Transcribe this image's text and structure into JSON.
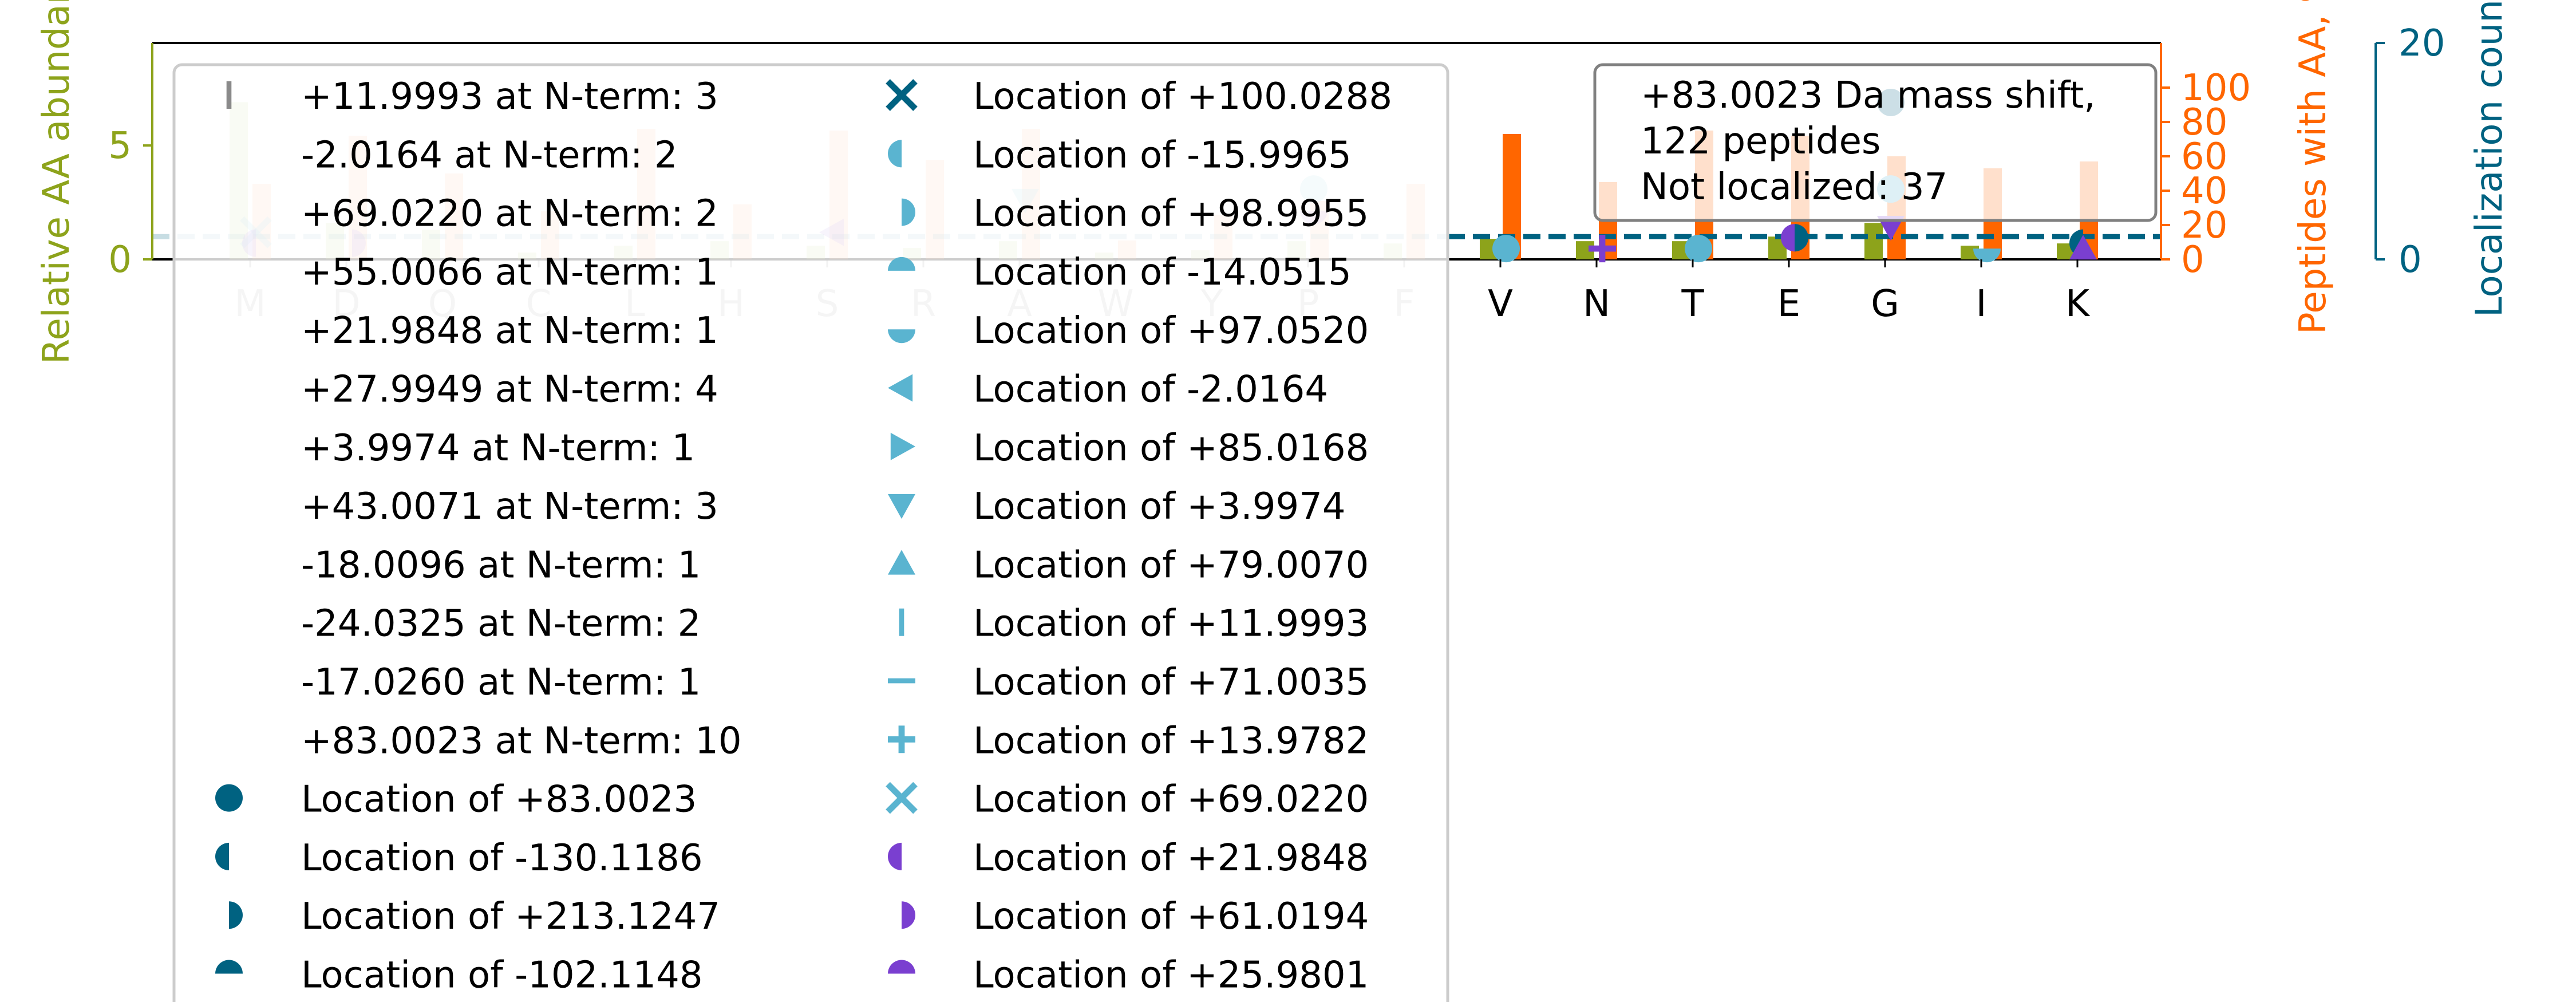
{
  "chart_data": {
    "type": "bar",
    "categories": [
      "M",
      "D",
      "Q",
      "C",
      "L",
      "H",
      "S",
      "R",
      "A",
      "W",
      "Y",
      "P",
      "F",
      "V",
      "N",
      "T",
      "E",
      "G",
      "I",
      "K"
    ],
    "y_left": {
      "label": "Relative AA abundance",
      "ticks": [
        "0",
        "5"
      ],
      "lim": [
        0,
        9.5
      ],
      "color": "#8da31b"
    },
    "y_right1": {
      "label": "Peptides with AA, %",
      "ticks": [
        "0",
        "20",
        "40",
        "60",
        "80",
        "100"
      ],
      "lim": [
        0,
        126
      ],
      "color": "#ff6600"
    },
    "y_right2": {
      "label": "Localization count",
      "ticks": [
        "0",
        "20"
      ],
      "lim": [
        0,
        20
      ],
      "color": "#006281"
    },
    "series": [
      {
        "name": "Relative AA abundance",
        "axis": "left",
        "color": "#8da31b",
        "values": [
          6.9,
          1.6,
          1.3,
          0.3,
          0.6,
          0.8,
          0.6,
          0.5,
          0.8,
          0.3,
          0.4,
          0.8,
          0.7,
          0.9,
          0.8,
          0.8,
          1.0,
          1.6,
          0.6,
          0.7
        ]
      },
      {
        "name": "Peptides with AA, %",
        "axis": "right1",
        "color": "#ff6600",
        "values": [
          44,
          72,
          50,
          28,
          76,
          32,
          75,
          58,
          76,
          11,
          26,
          34,
          44,
          73,
          45,
          75,
          72,
          60,
          53,
          57
        ]
      }
    ],
    "reference_line": {
      "value": 1,
      "axis": "left",
      "style": "dashed",
      "color": "#006281"
    },
    "stat_box": {
      "line1": "+83.0023 Da mass shift,",
      "line2": "122 peptides",
      "line3": "Not localized: 37"
    },
    "legend": {
      "placement": "upper-left",
      "col1": [
        {
          "label": "+11.9993 at N-term: 3",
          "marker": "vline",
          "color": "#8a8a8a"
        },
        {
          "label": "-2.0164 at N-term: 2",
          "marker": "none",
          "color": ""
        },
        {
          "label": "+69.0220 at N-term: 2",
          "marker": "none",
          "color": ""
        },
        {
          "label": "+55.0066 at N-term: 1",
          "marker": "none",
          "color": ""
        },
        {
          "label": "+21.9848 at N-term: 1",
          "marker": "none",
          "color": ""
        },
        {
          "label": "+27.9949 at N-term: 4",
          "marker": "none",
          "color": ""
        },
        {
          "label": "+3.9974 at N-term: 1",
          "marker": "none",
          "color": ""
        },
        {
          "label": "+43.0071 at N-term: 3",
          "marker": "none",
          "color": ""
        },
        {
          "label": "-18.0096 at N-term: 1",
          "marker": "none",
          "color": ""
        },
        {
          "label": "-24.0325 at N-term: 2",
          "marker": "none",
          "color": ""
        },
        {
          "label": "-17.0260 at N-term: 1",
          "marker": "none",
          "color": ""
        },
        {
          "label": "+83.0023 at N-term: 10",
          "marker": "none",
          "color": ""
        },
        {
          "label": "Location of +83.0023",
          "marker": "circle",
          "color": "#006281"
        },
        {
          "label": "Location of -130.1186",
          "marker": "half-left",
          "color": "#006281"
        },
        {
          "label": "Location of +213.1247",
          "marker": "half-right",
          "color": "#006281"
        },
        {
          "label": "Location of -102.1148",
          "marker": "half-top",
          "color": "#006281"
        }
      ],
      "col2": [
        {
          "label": "Location of +100.0288",
          "marker": "x",
          "color": "#006281"
        },
        {
          "label": "Location of -15.9965",
          "marker": "half-left",
          "color": "#5ab4d0"
        },
        {
          "label": "Location of +98.9955",
          "marker": "half-right",
          "color": "#5ab4d0"
        },
        {
          "label": "Location of -14.0515",
          "marker": "half-top",
          "color": "#5ab4d0"
        },
        {
          "label": "Location of +97.0520",
          "marker": "half-bottom",
          "color": "#5ab4d0"
        },
        {
          "label": "Location of -2.0164",
          "marker": "tri-left",
          "color": "#5ab4d0"
        },
        {
          "label": "Location of +85.0168",
          "marker": "tri-right",
          "color": "#5ab4d0"
        },
        {
          "label": "Location of +3.9974",
          "marker": "tri-down",
          "color": "#5ab4d0"
        },
        {
          "label": "Location of +79.0070",
          "marker": "tri-up",
          "color": "#5ab4d0"
        },
        {
          "label": "Location of +11.9993",
          "marker": "vline",
          "color": "#5ab4d0"
        },
        {
          "label": "Location of +71.0035",
          "marker": "hline",
          "color": "#5ab4d0"
        },
        {
          "label": "Location of +13.9782",
          "marker": "plus",
          "color": "#5ab4d0"
        },
        {
          "label": "Location of +69.0220",
          "marker": "x",
          "color": "#5ab4d0"
        },
        {
          "label": "Location of +21.9848",
          "marker": "half-left",
          "color": "#7a3fd0"
        },
        {
          "label": "Location of +61.0194",
          "marker": "half-right",
          "color": "#7a3fd0"
        },
        {
          "label": "Location of +25.9801",
          "marker": "half-top",
          "color": "#7a3fd0"
        }
      ]
    },
    "localization_points": [
      {
        "category": "M",
        "value": 2.5,
        "marker": "x",
        "color": "#5ab4d0"
      },
      {
        "category": "M",
        "value": 1.5,
        "marker": "half-left",
        "color": "#7a3fd0"
      },
      {
        "category": "D",
        "value": 1.5,
        "marker": "half-right",
        "color": "#7a3fd0"
      },
      {
        "category": "S",
        "value": 2.5,
        "marker": "tri-left",
        "color": "#7a3fd0"
      },
      {
        "category": "A",
        "value": 5.5,
        "marker": "tri-down",
        "color": "#5ab4d0"
      },
      {
        "category": "P",
        "value": 6.5,
        "marker": "circle",
        "color": "#5ab4d0"
      },
      {
        "category": "P",
        "value": 4.5,
        "marker": "half-bottom",
        "color": "#7a3fd0"
      },
      {
        "category": "V",
        "value": 1.0,
        "marker": "circle",
        "color": "#5ab4d0"
      },
      {
        "category": "N",
        "value": 1.0,
        "marker": "plus",
        "color": "#7a3fd0"
      },
      {
        "category": "T",
        "value": 1.0,
        "marker": "circle",
        "color": "#5ab4d0"
      },
      {
        "category": "E",
        "value": 2.0,
        "marker": "circle",
        "color": "#7a3fd0"
      },
      {
        "category": "E",
        "value": 2.0,
        "marker": "half-right",
        "color": "#006281"
      },
      {
        "category": "G",
        "value": 14.5,
        "marker": "circle",
        "color": "#006281"
      },
      {
        "category": "G",
        "value": 6.5,
        "marker": "circle",
        "color": "#5ab4d0"
      },
      {
        "category": "G",
        "value": 3.0,
        "marker": "tri-down",
        "color": "#7a3fd0"
      },
      {
        "category": "I",
        "value": 1.0,
        "marker": "half-bottom",
        "color": "#5ab4d0"
      },
      {
        "category": "K",
        "value": 1.5,
        "marker": "half-left",
        "color": "#006281"
      },
      {
        "category": "K",
        "value": 1.0,
        "marker": "tri-up",
        "color": "#7a3fd0"
      }
    ]
  }
}
